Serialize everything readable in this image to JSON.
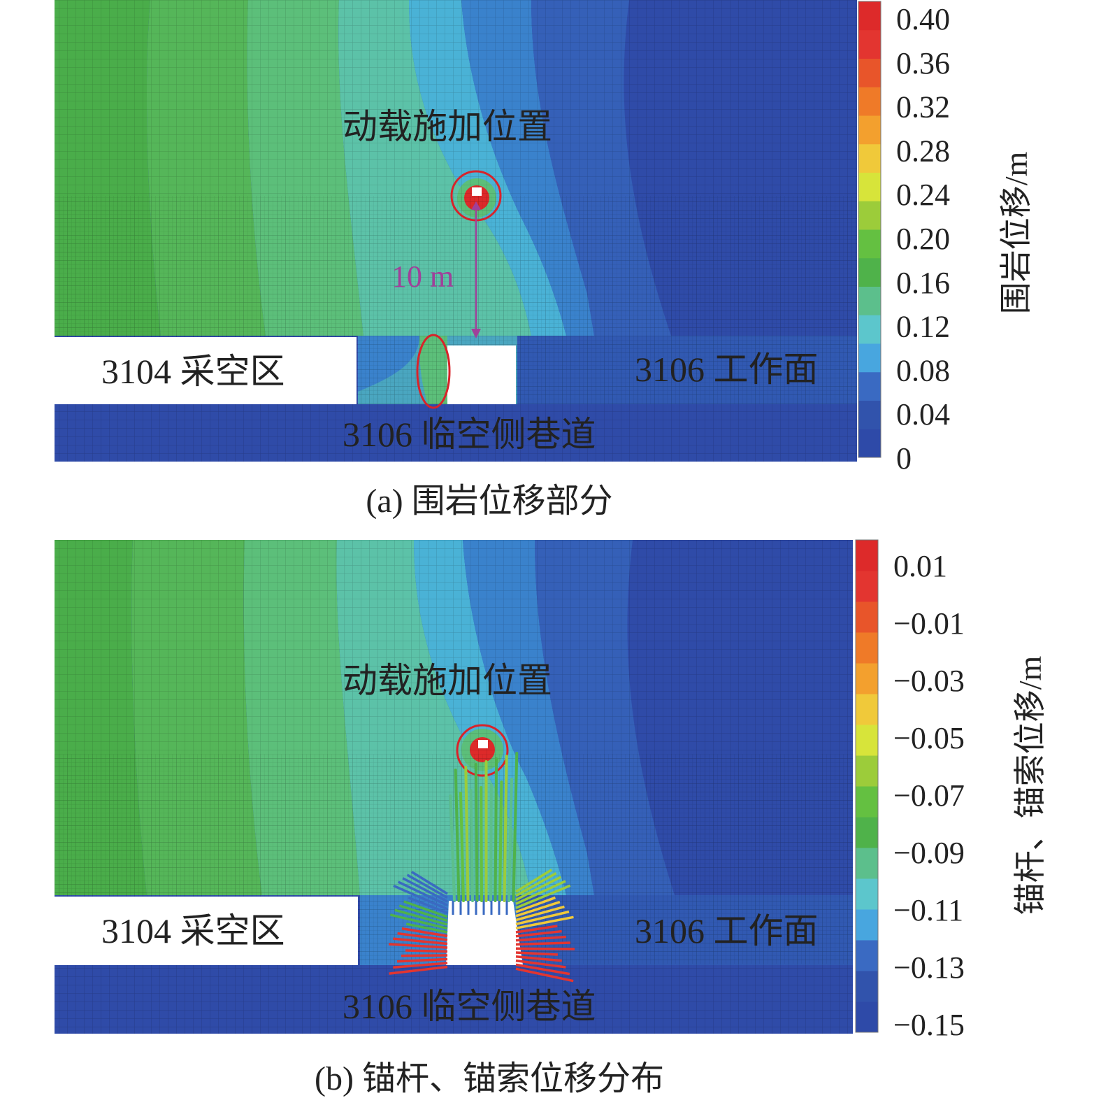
{
  "chart_data": [
    {
      "type": "heatmap",
      "caption": "(a) 围岩位移部分",
      "colorbar_title": "围岩位移/m",
      "colorbar_ticks": [
        "0.40",
        "0.36",
        "0.32",
        "0.28",
        "0.24",
        "0.20",
        "0.16",
        "0.12",
        "0.08",
        "0.04",
        "0"
      ],
      "colorbar_range": [
        0,
        0.4
      ],
      "colors": [
        "#2e4aa8",
        "#3153ac",
        "#3a6ac2",
        "#48a6df",
        "#5cc6cc",
        "#5cbf8c",
        "#4fb24a",
        "#64c041",
        "#9ccc3a",
        "#d7e43a",
        "#f0c93a",
        "#f3a02e",
        "#ef7a28",
        "#e8552a",
        "#e33530",
        "#dd2a2a"
      ],
      "labels": {
        "load": "动载施加位置",
        "goaf": "3104 采空区",
        "face": "3106 工作面",
        "roadway": "3106 临空侧巷道",
        "distance": "10 m"
      }
    },
    {
      "type": "heatmap",
      "caption": "(b) 锚杆、锚索位移分布",
      "colorbar_title": "锚杆、锚索位移/m",
      "colorbar_ticks": [
        "0.01",
        "−0.01",
        "−0.03",
        "−0.05",
        "−0.07",
        "−0.09",
        "−0.11",
        "−0.13",
        "−0.15"
      ],
      "colorbar_range": [
        -0.15,
        0.01
      ],
      "colors": [
        "#2e4aa8",
        "#3153ac",
        "#3a6ac2",
        "#48a6df",
        "#5cc6cc",
        "#5cbf8c",
        "#4fb24a",
        "#64c041",
        "#9ccc3a",
        "#d7e43a",
        "#f0c93a",
        "#f3a02e",
        "#ef7a28",
        "#e8552a",
        "#e33530",
        "#dd2a2a"
      ],
      "labels": {
        "load": "动载施加位置",
        "goaf": "3104 采空区",
        "face": "3106 工作面",
        "roadway": "3106 临空侧巷道"
      }
    }
  ]
}
